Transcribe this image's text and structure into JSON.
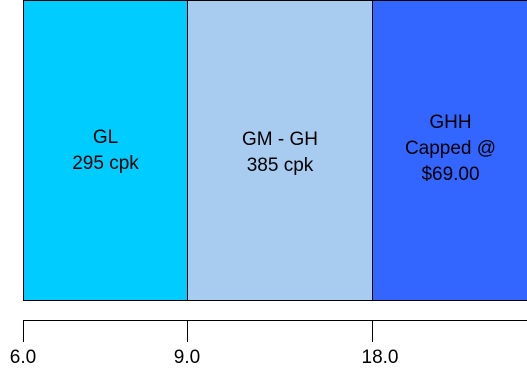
{
  "bands": [
    {
      "lines": [
        "GL",
        "295 cpk"
      ],
      "color": "#00ccff"
    },
    {
      "lines": [
        "GM - GH",
        "385 cpk"
      ],
      "color": "#a8cbf0"
    },
    {
      "lines": [
        "GHH",
        "Capped @",
        "$69.00"
      ],
      "color": "#3366ff"
    }
  ],
  "axis": {
    "ticks": [
      "6.0",
      "9.0",
      "18.0"
    ]
  }
}
